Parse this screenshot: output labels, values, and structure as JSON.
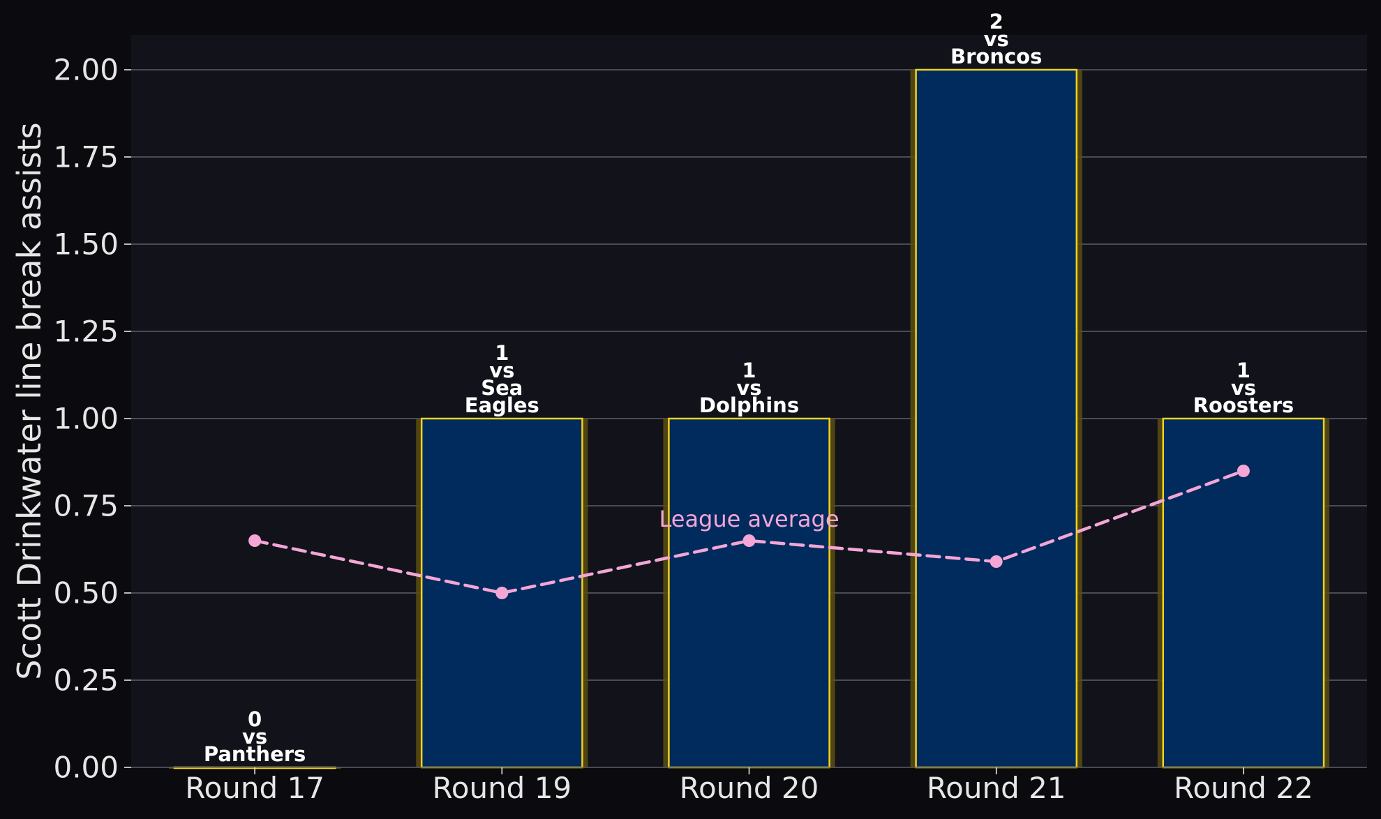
{
  "chart_data": {
    "type": "bar",
    "categories": [
      "Round 17",
      "Round 19",
      "Round 20",
      "Round 21",
      "Round 22"
    ],
    "values": [
      0,
      1,
      1,
      2,
      1
    ],
    "opponents": [
      [
        "Panthers"
      ],
      [
        "Sea",
        "Eagles"
      ],
      [
        "Dolphins"
      ],
      [
        "Broncos"
      ],
      [
        "Roosters"
      ]
    ],
    "bar_label_connector": "vs",
    "league_average": {
      "label": "League average",
      "values": [
        0.65,
        0.5,
        0.65,
        0.59,
        0.85
      ]
    },
    "xlabel": "",
    "ylabel": "Scott Drinkwater line break assists",
    "ylim": [
      0,
      2.1
    ],
    "yticks": [
      0,
      0.25,
      0.5,
      0.75,
      1.0,
      1.25,
      1.5,
      1.75,
      2.0
    ],
    "ytick_labels": [
      "0.00",
      "0.25",
      "0.50",
      "0.75",
      "1.00",
      "1.25",
      "1.50",
      "1.75",
      "2.00"
    ],
    "grid": "horizontal",
    "colors": {
      "background": "#0b0b0f",
      "plot_background": "#12131a",
      "bar_fill": "#002b5c",
      "bar_edge": "#f2d21c",
      "bar_glow": "#5c4e12",
      "grid": "#5e5e66",
      "average_line": "#f4a6d7",
      "text": "#e6e6e6",
      "bar_label": "#ffffff"
    }
  }
}
